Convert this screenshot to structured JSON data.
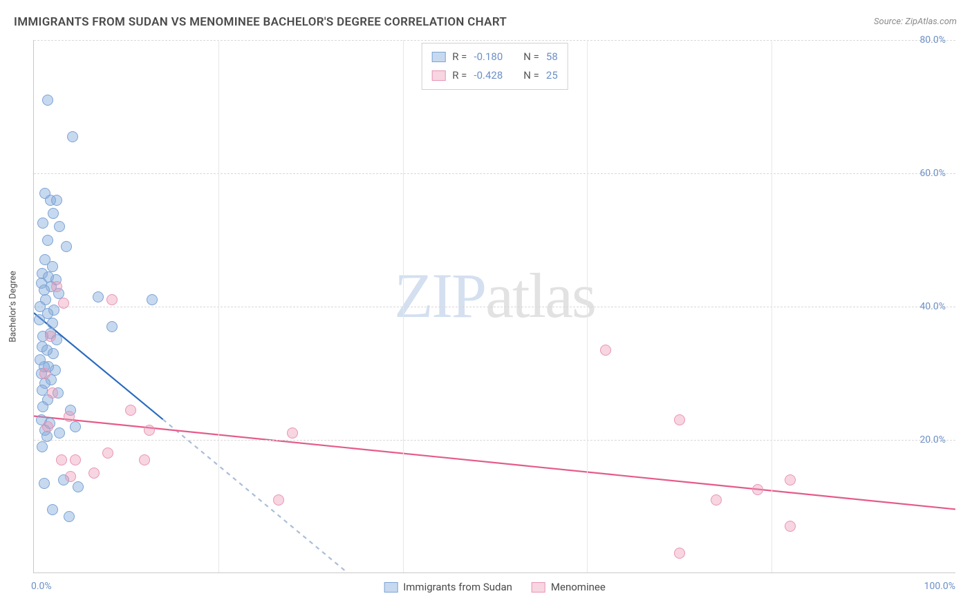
{
  "title": "IMMIGRANTS FROM SUDAN VS MENOMINEE BACHELOR'S DEGREE CORRELATION CHART",
  "source": "Source: ZipAtlas.com",
  "watermark_zip": "ZIP",
  "watermark_atlas": "atlas",
  "chart": {
    "type": "scatter",
    "xlim": [
      0,
      100
    ],
    "ylim": [
      0,
      80
    ],
    "ytick_step": 20,
    "xtick_left": "0.0%",
    "xtick_right": "100.0%",
    "yticks": [
      {
        "v": 20,
        "label": "20.0%"
      },
      {
        "v": 40,
        "label": "40.0%"
      },
      {
        "v": 60,
        "label": "60.0%"
      },
      {
        "v": 80,
        "label": "80.0%"
      }
    ],
    "ylabel": "Bachelor's Degree",
    "grid_color": "#d8d8d8",
    "vgrid_positions": [
      20,
      40,
      60,
      80
    ],
    "background_color": "#ffffff",
    "axis_color": "#c8c8c8",
    "tick_color": "#6b8fc7",
    "marker_size": 16,
    "series": [
      {
        "name": "Immigrants from Sudan",
        "fill": "rgba(130,170,220,0.45)",
        "stroke": "#7aa3d4",
        "line_color": "#2a6bbf",
        "dash_color": "#a8bdd8",
        "R_label": "R =",
        "R": "-0.180",
        "N_label": "N =",
        "N": "58",
        "trend_solid": {
          "x1": 0,
          "y1": 39,
          "x2": 14,
          "y2": 23
        },
        "trend_dash": {
          "x1": 14,
          "y1": 23,
          "x2": 34,
          "y2": 0
        },
        "points": [
          [
            1.5,
            71
          ],
          [
            4.2,
            65.5
          ],
          [
            1.2,
            57
          ],
          [
            1.8,
            56
          ],
          [
            2.5,
            56
          ],
          [
            2.1,
            54
          ],
          [
            1.0,
            52.5
          ],
          [
            2.8,
            52
          ],
          [
            1.5,
            50
          ],
          [
            3.5,
            49
          ],
          [
            1.2,
            47
          ],
          [
            2.0,
            46
          ],
          [
            0.9,
            45
          ],
          [
            1.6,
            44.5
          ],
          [
            2.4,
            44
          ],
          [
            0.8,
            43.5
          ],
          [
            1.9,
            43
          ],
          [
            1.1,
            42.5
          ],
          [
            2.7,
            42
          ],
          [
            7.0,
            41.5
          ],
          [
            12.8,
            41
          ],
          [
            1.3,
            41
          ],
          [
            0.7,
            40
          ],
          [
            2.2,
            39.5
          ],
          [
            1.5,
            39
          ],
          [
            0.6,
            38
          ],
          [
            2.0,
            37.5
          ],
          [
            8.5,
            37
          ],
          [
            1.8,
            36
          ],
          [
            1.0,
            35.5
          ],
          [
            2.5,
            35
          ],
          [
            0.9,
            34
          ],
          [
            1.4,
            33.5
          ],
          [
            2.1,
            33
          ],
          [
            0.7,
            32
          ],
          [
            1.6,
            31
          ],
          [
            1.1,
            31
          ],
          [
            2.3,
            30.5
          ],
          [
            0.8,
            30
          ],
          [
            1.9,
            29
          ],
          [
            1.2,
            28.5
          ],
          [
            0.9,
            27.5
          ],
          [
            2.6,
            27
          ],
          [
            1.5,
            26
          ],
          [
            1.0,
            25
          ],
          [
            4.0,
            24.5
          ],
          [
            0.8,
            23
          ],
          [
            1.7,
            22.5
          ],
          [
            4.5,
            22
          ],
          [
            1.2,
            21.5
          ],
          [
            2.8,
            21
          ],
          [
            1.4,
            20.5
          ],
          [
            0.9,
            19
          ],
          [
            3.2,
            14
          ],
          [
            1.1,
            13.5
          ],
          [
            4.8,
            13
          ],
          [
            2.0,
            9.5
          ],
          [
            3.8,
            8.5
          ]
        ]
      },
      {
        "name": "Menominee",
        "fill": "rgba(235,150,180,0.40)",
        "stroke": "#e994b5",
        "line_color": "#e55a8a",
        "R_label": "R =",
        "R": "-0.428",
        "N_label": "N =",
        "N": "25",
        "trend_solid": {
          "x1": 0,
          "y1": 23.5,
          "x2": 100,
          "y2": 9.5
        },
        "points": [
          [
            2.5,
            43
          ],
          [
            3.2,
            40.5
          ],
          [
            8.5,
            41
          ],
          [
            1.8,
            35.5
          ],
          [
            62,
            33.5
          ],
          [
            1.2,
            30
          ],
          [
            2.0,
            27
          ],
          [
            10.5,
            24.5
          ],
          [
            3.8,
            23.5
          ],
          [
            1.5,
            22
          ],
          [
            12.5,
            21.5
          ],
          [
            70,
            23
          ],
          [
            28,
            21
          ],
          [
            8.0,
            18
          ],
          [
            4.5,
            17
          ],
          [
            12.0,
            17
          ],
          [
            3.0,
            17
          ],
          [
            6.5,
            15
          ],
          [
            4.0,
            14.5
          ],
          [
            26.5,
            11
          ],
          [
            74,
            11
          ],
          [
            82,
            14
          ],
          [
            70,
            3
          ],
          [
            82,
            7
          ],
          [
            78.5,
            12.5
          ]
        ]
      }
    ]
  },
  "legend_bottom": [
    {
      "label": "Immigrants from Sudan"
    },
    {
      "label": "Menominee"
    }
  ]
}
